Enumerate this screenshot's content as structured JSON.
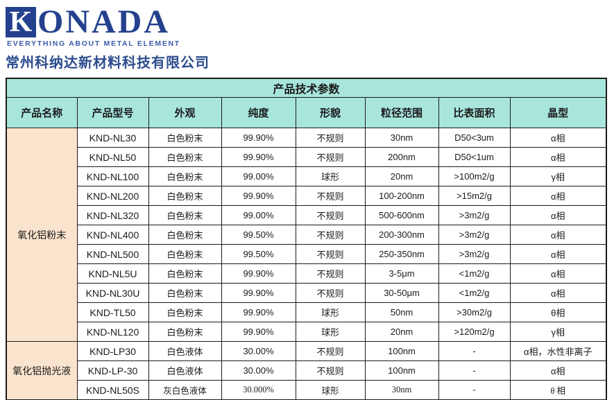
{
  "brand": {
    "logo_mark": "K",
    "logo_rest": "ONADA",
    "tagline": "EVERYTHING ABOUT METAL ELEMENT",
    "company_name": "常州科纳达新材料科技有限公司"
  },
  "colors": {
    "header_teal": "#A8E6DC",
    "group_peach": "#FBE4CE",
    "border": "#1A1A1A",
    "logo_blue": "#24418E",
    "company_name_blue": "#2C4C8E"
  },
  "table": {
    "title": "产品技术参数",
    "columns": [
      "产品名称",
      "产品型号",
      "外观",
      "纯度",
      "形貌",
      "粒径范围",
      "比表面积",
      "晶型"
    ],
    "groups": [
      {
        "name": "氧化铝粉末",
        "rows": [
          {
            "model": "KND-NL30",
            "appearance": "白色粉末",
            "purity": "99.90%",
            "morphology": "不规则",
            "size": "30nm",
            "ssa": "D50<3um",
            "crystal": "α相"
          },
          {
            "model": "KND-NL50",
            "appearance": "白色粉末",
            "purity": "99.90%",
            "morphology": "不规则",
            "size": "200nm",
            "ssa": "D50<1um",
            "crystal": "α相"
          },
          {
            "model": "KND-NL100",
            "appearance": "白色粉末",
            "purity": "99.00%",
            "morphology": "球形",
            "size": "20nm",
            "ssa": ">100m2/g",
            "crystal": "γ相"
          },
          {
            "model": "KND-NL200",
            "appearance": "白色粉末",
            "purity": "99.90%",
            "morphology": "不规则",
            "size": "100-200nm",
            "ssa": ">15m2/g",
            "crystal": "α相"
          },
          {
            "model": "KND-NL320",
            "appearance": "白色粉末",
            "purity": "99.00%",
            "morphology": "不规则",
            "size": "500-600nm",
            "ssa": ">3m2/g",
            "crystal": "α相"
          },
          {
            "model": "KND-NL400",
            "appearance": "白色粉末",
            "purity": "99.50%",
            "morphology": "不规则",
            "size": "200-300nm",
            "ssa": ">3m2/g",
            "crystal": "α相"
          },
          {
            "model": "KND-NL500",
            "appearance": "白色粉末",
            "purity": "99.50%",
            "morphology": "不规则",
            "size": "250-350nm",
            "ssa": ">3m2/g",
            "crystal": "α相"
          },
          {
            "model": "KND-NL5U",
            "appearance": "白色粉末",
            "purity": "99.90%",
            "morphology": "不规则",
            "size": "3-5μm",
            "ssa": "<1m2/g",
            "crystal": "α相"
          },
          {
            "model": "KND-NL30U",
            "appearance": "白色粉末",
            "purity": "99.90%",
            "morphology": "不规则",
            "size": "30-50μm",
            "ssa": "<1m2/g",
            "crystal": "α相"
          },
          {
            "model": "KND-TL50",
            "appearance": "白色粉末",
            "purity": "99.90%",
            "morphology": "球形",
            "size": "50nm",
            "ssa": ">30m2/g",
            "crystal": "θ相"
          },
          {
            "model": "KND-NL120",
            "appearance": "白色粉末",
            "purity": "99.90%",
            "morphology": "球形",
            "size": "20nm",
            "ssa": ">120m2/g",
            "crystal": "γ相"
          }
        ]
      },
      {
        "name": "氧化铝抛光液",
        "rows": [
          {
            "model": "KND-LP30",
            "appearance": "白色液体",
            "purity": "30.00%",
            "morphology": "不规则",
            "size": "100nm",
            "ssa": "-",
            "crystal": "α相，水性非离子"
          },
          {
            "model": "KND-LP-30",
            "appearance": "白色液体",
            "purity": "30.00%",
            "morphology": "不规则",
            "size": "100nm",
            "ssa": "-",
            "crystal": "α相"
          },
          {
            "model": "KND-NL50S",
            "appearance": "灰白色液体",
            "purity": "30.000%",
            "morphology": "球形",
            "size": "30nm",
            "ssa": "-",
            "crystal": "θ 相",
            "alt_font": true
          }
        ]
      }
    ]
  }
}
